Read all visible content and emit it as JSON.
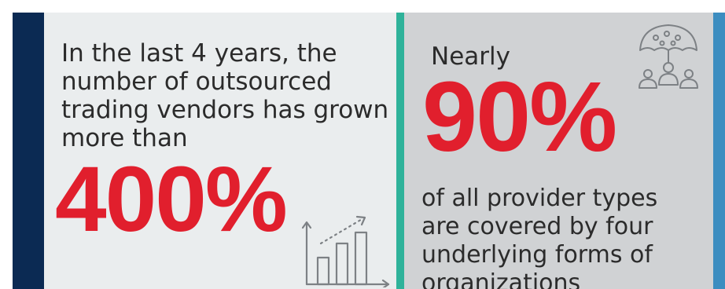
{
  "left_panel": {
    "lines": [
      "In the last 4 years, the",
      "number of outsourced",
      "trading vendors has grown",
      "more than"
    ],
    "big_stat": "400%",
    "icon": "bar-chart-growth-icon"
  },
  "right_panel": {
    "intro": "Nearly",
    "big_stat": "90%",
    "lines": [
      "of all provider types",
      "are covered by four",
      "underlying forms of",
      "organizations"
    ],
    "icon": "umbrella-people-icon"
  },
  "colors": {
    "navy": "#0b2a53",
    "teal": "#2fb29a",
    "blue": "#3c8dc0",
    "red": "#e11f2d",
    "panel_left": "#eaedee",
    "panel_right": "#d0d2d4"
  }
}
